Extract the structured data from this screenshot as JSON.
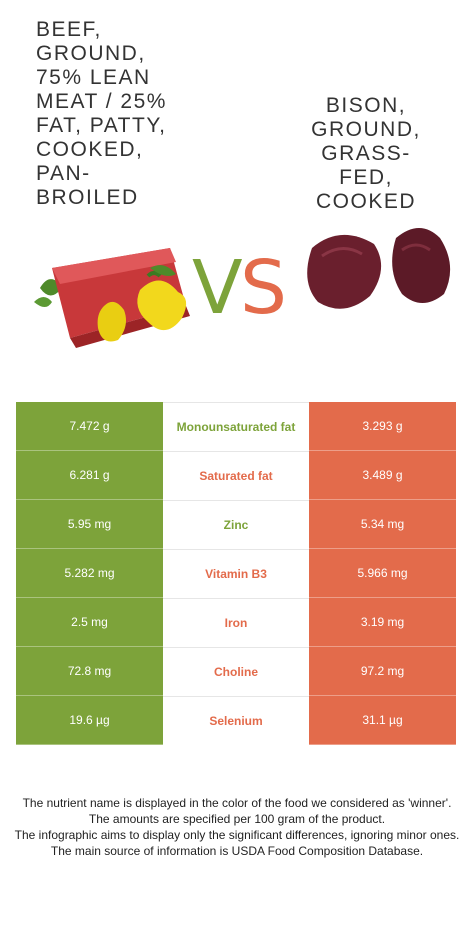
{
  "foods": {
    "left": "Beef, ground, 75% lean meat / 25% fat, patty, cooked, pan-broiled",
    "right": "Bison, ground, grass-fed, cooked"
  },
  "vs": {
    "v": "V",
    "s": "S"
  },
  "colors": {
    "left": "#7da33a",
    "right": "#e36b4b"
  },
  "chart_data": {
    "type": "table",
    "columns": [
      "Beef, ground, 75% lean meat / 25% fat, patty, cooked, pan-broiled",
      "Bison, ground, grass-fed, cooked"
    ],
    "rows": [
      {
        "nutrient": "Monounsaturated fat",
        "left": "7.472 g",
        "right": "3.293 g",
        "winner": "left"
      },
      {
        "nutrient": "Saturated fat",
        "left": "6.281 g",
        "right": "3.489 g",
        "winner": "right"
      },
      {
        "nutrient": "Zinc",
        "left": "5.95 mg",
        "right": "5.34 mg",
        "winner": "left"
      },
      {
        "nutrient": "Vitamin B3",
        "left": "5.282 mg",
        "right": "5.966 mg",
        "winner": "right"
      },
      {
        "nutrient": "Iron",
        "left": "2.5 mg",
        "right": "3.19 mg",
        "winner": "right"
      },
      {
        "nutrient": "Choline",
        "left": "72.8 mg",
        "right": "97.2 mg",
        "winner": "right"
      },
      {
        "nutrient": "Selenium",
        "left": "19.6 µg",
        "right": "31.1 µg",
        "winner": "right"
      }
    ]
  },
  "footer": {
    "line1": "The nutrient name is displayed in the color of the food we considered as 'winner'.",
    "line2": "The amounts are specified per 100 gram of the product.",
    "line3": "The infographic aims to display only the significant differences, ignoring minor ones.",
    "line4": "The main source of information is USDA Food Composition Database."
  }
}
